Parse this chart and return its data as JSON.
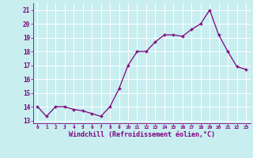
{
  "x": [
    0,
    1,
    2,
    3,
    4,
    5,
    6,
    7,
    8,
    9,
    10,
    11,
    12,
    13,
    14,
    15,
    16,
    17,
    18,
    19,
    20,
    21,
    22,
    23
  ],
  "y": [
    14.0,
    13.3,
    14.0,
    14.0,
    13.8,
    13.7,
    13.5,
    13.3,
    14.0,
    15.3,
    17.0,
    18.0,
    18.0,
    18.7,
    19.2,
    19.2,
    19.1,
    19.6,
    20.0,
    21.0,
    19.2,
    18.0,
    16.9,
    16.7
  ],
  "xlim": [
    -0.5,
    23.5
  ],
  "ylim": [
    12.8,
    21.5
  ],
  "yticks": [
    13,
    14,
    15,
    16,
    17,
    18,
    19,
    20,
    21
  ],
  "xticks": [
    0,
    1,
    2,
    3,
    4,
    5,
    6,
    7,
    8,
    9,
    10,
    11,
    12,
    13,
    14,
    15,
    16,
    17,
    18,
    19,
    20,
    21,
    22,
    23
  ],
  "xlabel": "Windchill (Refroidissement éolien,°C)",
  "line_color": "#800080",
  "marker": "+",
  "bg_color": "#c8eef0",
  "grid_color": "#ffffff",
  "xlabel_color": "#800080",
  "tick_color": "#800080",
  "font": "monospace"
}
